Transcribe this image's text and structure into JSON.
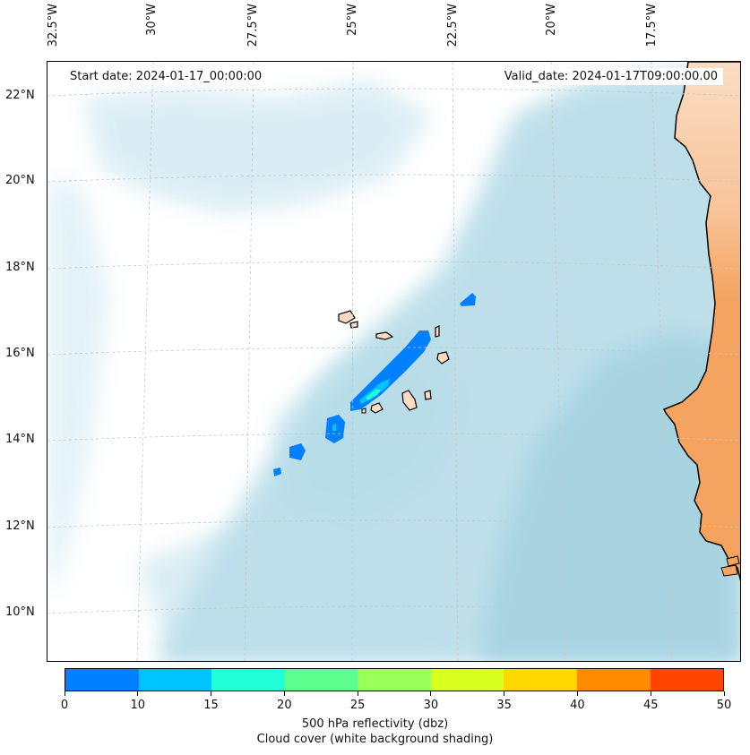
{
  "header": {
    "start_date": "Start date: 2024-01-17_00:00:00",
    "valid_date": "Valid_date: 2024-01-17T09:00:00.00"
  },
  "map": {
    "lon_labels": [
      "32.5°W",
      "30°W",
      "27.5°W",
      "25°W",
      "22.5°W",
      "20°W",
      "17.5°W"
    ],
    "lat_labels": [
      "22°N",
      "20°N",
      "18°N",
      "16°N",
      "14°N",
      "12°N",
      "10°N"
    ],
    "colors": {
      "cloud": "#aed8e6",
      "land_dry": "#f4a460",
      "land_light": "#fbdcc2",
      "coast": "#000000",
      "grid": "#c8c8c8"
    }
  },
  "colorbar": {
    "ticks": [
      "0",
      "10",
      "15",
      "20",
      "25",
      "30",
      "35",
      "40",
      "45",
      "50"
    ],
    "colors": [
      "#0080ff",
      "#00c4ff",
      "#20ffd8",
      "#5cff8e",
      "#9aff58",
      "#d8ff1e",
      "#ffd800",
      "#ff8c00",
      "#ff4500"
    ],
    "label": "500 hPa reflectivity (dbz)",
    "caption": "Cloud cover (white background shading)"
  }
}
